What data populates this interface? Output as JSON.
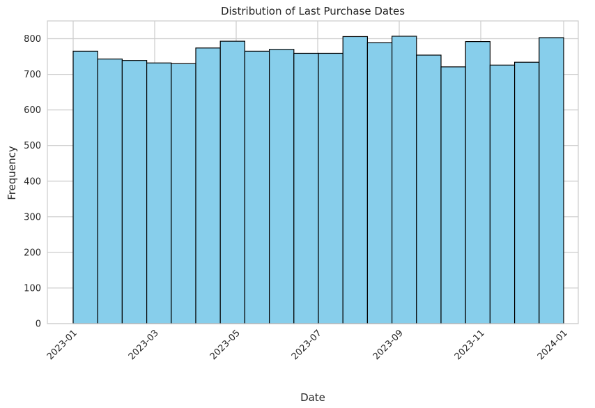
{
  "chart_data": {
    "type": "bar",
    "title": "Distribution of Last Purchase Dates",
    "xlabel": "Date",
    "ylabel": "Frequency",
    "ylim": [
      0,
      850
    ],
    "yticks": [
      0,
      100,
      200,
      300,
      400,
      500,
      600,
      700,
      800
    ],
    "xticks": [
      "2023-01",
      "2023-03",
      "2023-05",
      "2023-07",
      "2023-09",
      "2023-11",
      "2024-01"
    ],
    "grid": true,
    "bar_color": "#87CEEB",
    "edge_color": "#000000",
    "values": [
      765,
      743,
      739,
      732,
      730,
      774,
      793,
      765,
      770,
      759,
      759,
      806,
      789,
      807,
      754,
      721,
      792,
      726,
      734,
      803
    ]
  }
}
